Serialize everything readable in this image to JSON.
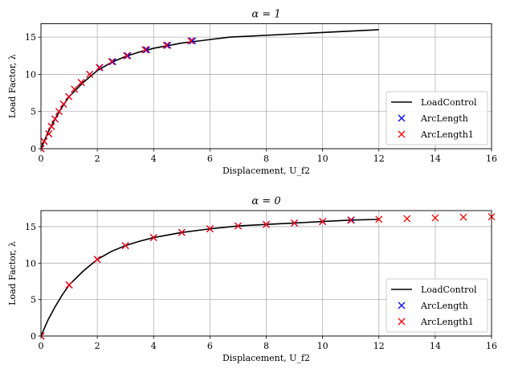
{
  "chart_data": [
    {
      "type": "line",
      "title": "α = 1",
      "xlabel": "Displacement, U_f2",
      "ylabel": "Load Factor, λ",
      "xlim": [
        0,
        16
      ],
      "ylim": [
        0,
        16.8
      ],
      "xticks": [
        0,
        2,
        4,
        6,
        8,
        10,
        12,
        14,
        16
      ],
      "yticks": [
        0,
        5,
        10,
        15
      ],
      "grid": true,
      "legend": "lower-right",
      "series": [
        {
          "name": "LoadControl",
          "style": "line",
          "color": "#000000",
          "x": [
            0,
            0.25,
            0.5,
            0.75,
            1,
            1.5,
            2,
            2.5,
            3,
            3.5,
            4,
            5,
            6.7,
            12
          ],
          "y": [
            0,
            2.2,
            4,
            5.6,
            7,
            8.9,
            10.5,
            11.6,
            12.4,
            13,
            13.5,
            14.2,
            15,
            16
          ]
        },
        {
          "name": "ArcLength",
          "style": "x",
          "color": "#0000ff",
          "x": [
            0,
            0.11,
            0.28,
            0.37,
            0.5,
            0.64,
            0.8,
            0.99,
            1.19,
            1.43,
            1.73,
            2.09,
            2.55,
            3.08,
            3.75,
            4.5,
            5.38
          ],
          "y": [
            0,
            1,
            2,
            3,
            4,
            5,
            6,
            7,
            8,
            8.9,
            10,
            10.9,
            11.7,
            12.5,
            13.3,
            13.9,
            14.5
          ]
        },
        {
          "name": "ArcLength1",
          "style": "x",
          "color": "#ff0000",
          "x": [
            0,
            0.11,
            0.28,
            0.37,
            0.5,
            0.64,
            0.8,
            0.99,
            1.19,
            1.43,
            1.73,
            2.07,
            2.51,
            3.04,
            3.7,
            4.45,
            5.32
          ],
          "y": [
            0,
            1,
            2,
            3,
            4,
            5,
            6,
            7,
            8,
            8.9,
            10,
            10.9,
            11.7,
            12.5,
            13.3,
            13.9,
            14.5
          ]
        }
      ]
    },
    {
      "type": "line",
      "title": "α = 0",
      "xlabel": "Displacement, U_f2",
      "ylabel": "Load Factor, λ",
      "xlim": [
        0,
        16
      ],
      "ylim": [
        0,
        17.2
      ],
      "xticks": [
        0,
        2,
        4,
        6,
        8,
        10,
        12,
        14,
        16
      ],
      "yticks": [
        0,
        5,
        10,
        15
      ],
      "grid": true,
      "legend": "lower-right",
      "series": [
        {
          "name": "LoadControl",
          "style": "line",
          "color": "#000000",
          "x": [
            0,
            0.25,
            0.5,
            0.75,
            1,
            1.5,
            2,
            2.5,
            3,
            3.5,
            4,
            5,
            6,
            7,
            8,
            9,
            10,
            11,
            12
          ],
          "y": [
            0,
            2.2,
            4,
            5.6,
            7,
            8.9,
            10.5,
            11.6,
            12.4,
            13,
            13.5,
            14.2,
            14.7,
            15.1,
            15.3,
            15.5,
            15.7,
            15.9,
            16
          ]
        },
        {
          "name": "ArcLength",
          "style": "x",
          "color": "#0000ff",
          "x": [
            0,
            1,
            2,
            3,
            4,
            5,
            6,
            7,
            8,
            9,
            10,
            11.02
          ],
          "y": [
            0,
            7,
            10.5,
            12.4,
            13.5,
            14.2,
            14.7,
            15.1,
            15.3,
            15.5,
            15.7,
            15.9
          ]
        },
        {
          "name": "ArcLength1",
          "style": "x",
          "color": "#ff0000",
          "x": [
            0,
            1,
            2,
            3,
            4,
            5,
            6,
            7,
            8,
            9,
            10,
            11,
            12,
            13,
            14,
            15,
            16
          ],
          "y": [
            0,
            7,
            10.5,
            12.4,
            13.5,
            14.2,
            14.7,
            15.1,
            15.3,
            15.5,
            15.7,
            15.9,
            16,
            16.1,
            16.2,
            16.3,
            16.35
          ]
        }
      ]
    }
  ]
}
